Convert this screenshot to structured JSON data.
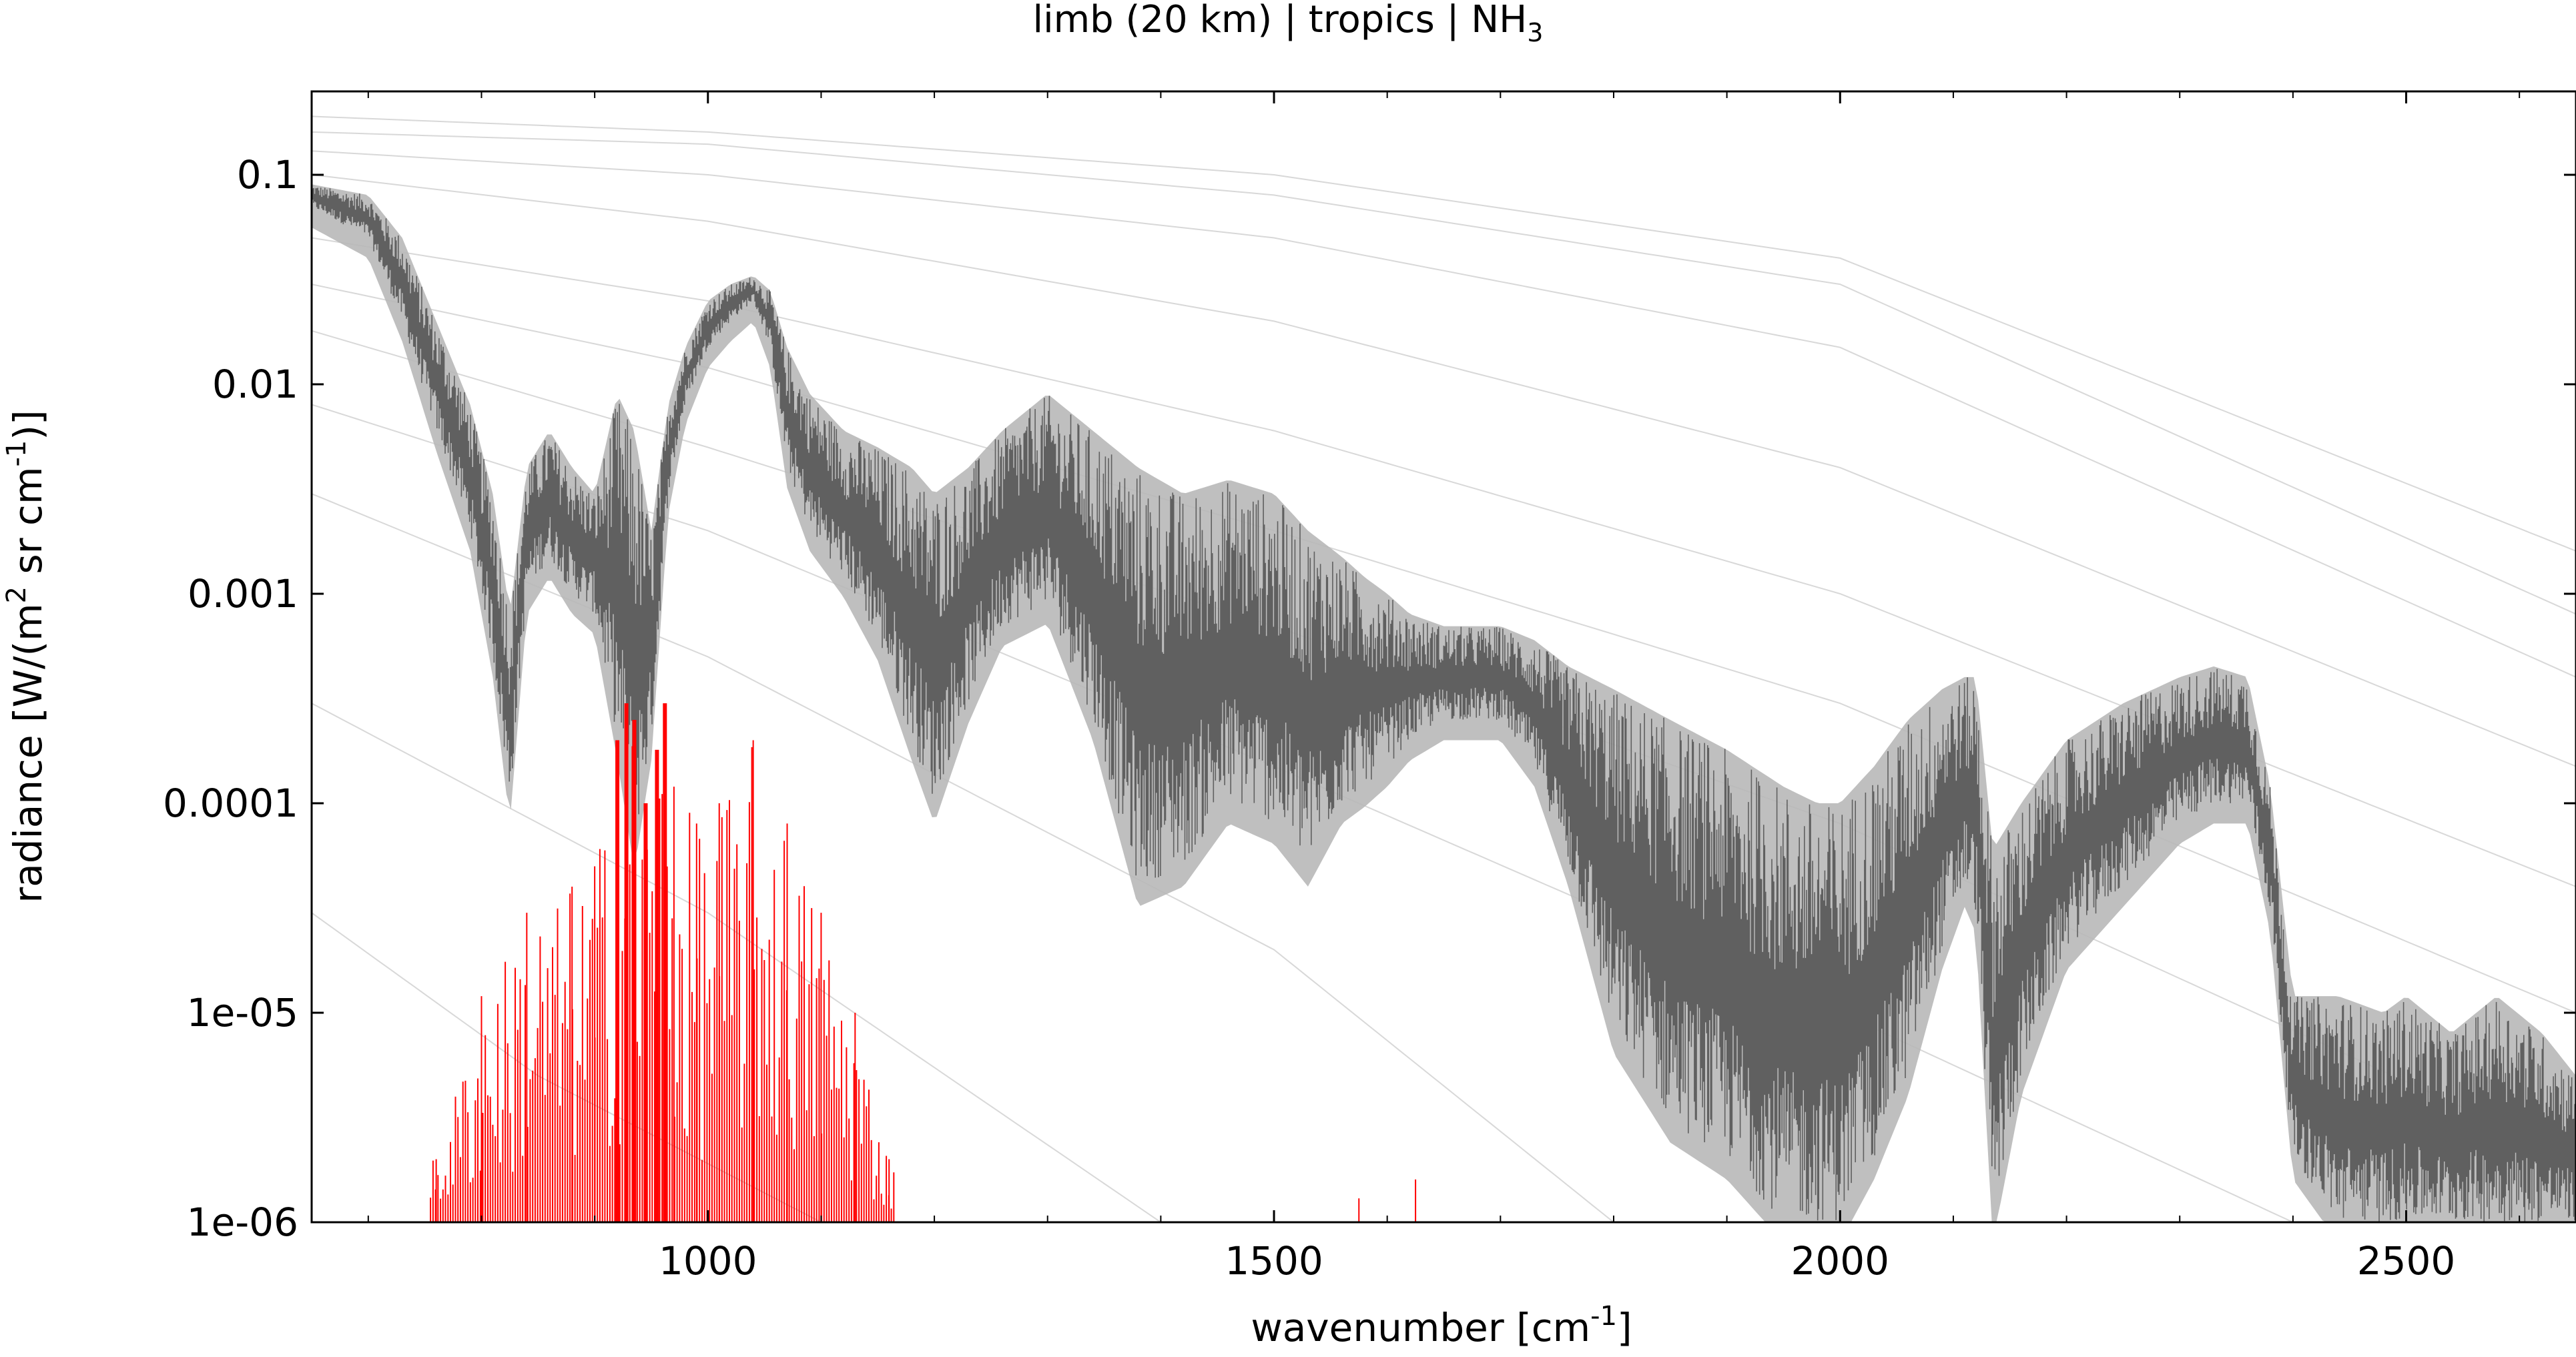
{
  "chart_data": {
    "type": "line",
    "title": "limb (20 km) | tropics | NH",
    "title_subscript": "3",
    "xlabel": "wavenumber [cm",
    "xlabel_sup": "-1",
    "xlabel_end": "]",
    "ylabel_parts": {
      "a": "radiance [W/(m",
      "sup1": "2",
      "b": " sr cm",
      "sup2": "-1",
      "c": ")]"
    },
    "xlim": [
      650,
      2650
    ],
    "ylim": [
      1e-06,
      0.25
    ],
    "yscale": "log",
    "grid": false,
    "x_ticks": [
      {
        "value": 1000,
        "label": "1000"
      },
      {
        "value": 1500,
        "label": "1500"
      },
      {
        "value": 2000,
        "label": "2000"
      },
      {
        "value": 2500,
        "label": "2500"
      }
    ],
    "y_ticks": [
      {
        "value": 0.1,
        "label": "0.1"
      },
      {
        "value": 0.01,
        "label": "0.01"
      },
      {
        "value": 0.001,
        "label": "0.001"
      },
      {
        "value": 0.0001,
        "label": "0.0001"
      },
      {
        "value": 1e-05,
        "label": "1e-05"
      },
      {
        "value": 1e-06,
        "label": "1e-06"
      }
    ],
    "colors": {
      "total_radiance": "#606060",
      "radiance_envelope": "#b8b8b8",
      "nh3_contribution": "#ff0000",
      "planck_reference": "#d8d8d8"
    },
    "series": [
      {
        "color_key": "total_radiance",
        "style": "dense-line",
        "x": [
          650,
          700,
          730,
          760,
          790,
          810,
          825,
          840,
          860,
          880,
          900,
          920,
          935,
          950,
          965,
          980,
          1000,
          1020,
          1040,
          1055,
          1070,
          1090,
          1120,
          1150,
          1180,
          1200,
          1230,
          1260,
          1300,
          1340,
          1380,
          1420,
          1460,
          1500,
          1530,
          1560,
          1580,
          1600,
          1620,
          1650,
          1680,
          1700,
          1730,
          1760,
          1800,
          1850,
          1900,
          1950,
          1980,
          2000,
          2030,
          2060,
          2090,
          2110,
          2120,
          2135,
          2160,
          2200,
          2250,
          2300,
          2330,
          2360,
          2380,
          2400,
          2440,
          2480,
          2500,
          2540,
          2580,
          2620,
          2650
        ],
        "upper": [
          0.09,
          0.08,
          0.05,
          0.02,
          0.008,
          0.003,
          0.0008,
          0.004,
          0.006,
          0.004,
          0.003,
          0.009,
          0.006,
          0.002,
          0.008,
          0.015,
          0.025,
          0.03,
          0.033,
          0.028,
          0.015,
          0.009,
          0.006,
          0.005,
          0.004,
          0.003,
          0.004,
          0.006,
          0.009,
          0.006,
          0.004,
          0.003,
          0.0035,
          0.003,
          0.002,
          0.0015,
          0.0012,
          0.001,
          0.0008,
          0.0007,
          0.0007,
          0.0007,
          0.0006,
          0.00045,
          0.00035,
          0.00025,
          0.00018,
          0.00012,
          0.0001,
          0.0001,
          0.00015,
          0.00025,
          0.00035,
          0.0004,
          0.0004,
          6e-05,
          0.0001,
          0.0002,
          0.0003,
          0.0004,
          0.00045,
          0.0004,
          0.00012,
          1.2e-05,
          1.2e-05,
          1e-05,
          1.2e-05,
          8e-06,
          1.2e-05,
          8e-06,
          5e-06
        ],
        "lower": [
          0.07,
          0.05,
          0.02,
          0.006,
          0.002,
          0.0005,
          0.0001,
          0.001,
          0.0015,
          0.001,
          0.0008,
          0.0002,
          6e-05,
          0.0002,
          0.003,
          0.008,
          0.015,
          0.02,
          0.025,
          0.015,
          0.004,
          0.002,
          0.0012,
          0.0006,
          0.0002,
          0.0001,
          0.0003,
          0.0007,
          0.0009,
          0.00025,
          4e-05,
          5e-05,
          0.0001,
          8e-05,
          5e-05,
          0.0001,
          0.00012,
          0.00015,
          0.0002,
          0.00025,
          0.00025,
          0.00025,
          0.00015,
          5e-05,
          8e-06,
          3e-06,
          2e-06,
          1e-06,
          1e-06,
          1e-06,
          2e-06,
          5e-06,
          2e-05,
          4e-05,
          3e-05,
          1e-06,
          5e-06,
          2e-05,
          4e-05,
          8e-05,
          0.0001,
          0.0001,
          3e-05,
          2e-06,
          1e-06,
          1e-06,
          1e-06,
          1e-06,
          1e-06,
          1e-06,
          1e-06
        ]
      },
      {
        "color_key": "nh3_contribution",
        "style": "spikes",
        "x": [
          760,
          800,
          840,
          880,
          900,
          920,
          928,
          935,
          945,
          955,
          962,
          970,
          990,
          1010,
          1040,
          1070,
          1100,
          1130,
          1160,
          1575,
          1625
        ],
        "peak": [
          2e-06,
          1.2e-05,
          3e-05,
          4e-05,
          5e-05,
          0.0002,
          0.0003,
          0.00025,
          0.0001,
          0.00018,
          0.0003,
          0.00012,
          8e-05,
          0.0001,
          0.0002,
          8e-05,
          3e-05,
          1e-05,
          2e-06,
          1.3e-06,
          1.6e-06
        ]
      }
    ],
    "planck_reference_curves": [
      {
        "color_key": "planck_reference",
        "x": [
          650,
          1000,
          1500,
          2000,
          2650
        ],
        "y": [
          0.19,
          0.16,
          0.1,
          0.04,
          0.0016
        ]
      },
      {
        "color_key": "planck_reference",
        "x": [
          650,
          1000,
          1500,
          2000,
          2650
        ],
        "y": [
          0.16,
          0.14,
          0.08,
          0.03,
          0.0008
        ]
      },
      {
        "color_key": "planck_reference",
        "x": [
          650,
          1000,
          1500,
          2000,
          2650
        ],
        "y": [
          0.13,
          0.1,
          0.05,
          0.015,
          0.0004
        ]
      },
      {
        "color_key": "planck_reference",
        "x": [
          650,
          1000,
          1500,
          2000,
          2650
        ],
        "y": [
          0.1,
          0.06,
          0.02,
          0.004,
          0.00015
        ]
      },
      {
        "color_key": "planck_reference",
        "x": [
          650,
          1000,
          1500,
          2000,
          2650
        ],
        "y": [
          0.05,
          0.025,
          0.006,
          0.001,
          4e-05
        ]
      },
      {
        "color_key": "planck_reference",
        "x": [
          650,
          1000,
          1500,
          2000,
          2650
        ],
        "y": [
          0.03,
          0.012,
          0.002,
          0.0003,
          1e-05
        ]
      },
      {
        "color_key": "planck_reference",
        "x": [
          650,
          1000,
          1500,
          2000,
          2650
        ],
        "y": [
          0.018,
          0.005,
          0.0007,
          8e-05,
          2e-06
        ]
      },
      {
        "color_key": "planck_reference",
        "x": [
          650,
          1000,
          1500,
          2000,
          2400
        ],
        "y": [
          0.008,
          0.002,
          0.00015,
          1e-05,
          1e-06
        ]
      },
      {
        "color_key": "planck_reference",
        "x": [
          650,
          1000,
          1500,
          1800
        ],
        "y": [
          0.003,
          0.0005,
          2e-05,
          1e-06
        ]
      },
      {
        "color_key": "planck_reference",
        "x": [
          650,
          1000,
          1400
        ],
        "y": [
          0.0003,
          3e-05,
          1e-06
        ]
      },
      {
        "color_key": "planck_reference",
        "x": [
          650,
          850,
          1100
        ],
        "y": [
          3e-05,
          5e-06,
          1e-06
        ]
      }
    ]
  }
}
